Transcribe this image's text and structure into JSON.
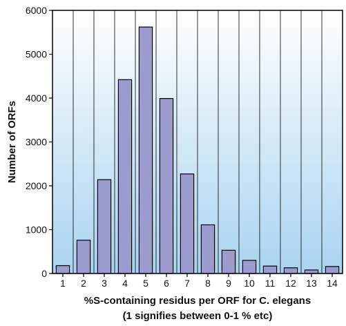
{
  "chart_data": {
    "type": "bar",
    "xlabel_line1": "%S-containing residus per ORF for C. elegans",
    "xlabel_line2": "(1 signifies between 0-1 % etc)",
    "ylabel": "Number of ORFs",
    "categories": [
      "1",
      "2",
      "3",
      "4",
      "5",
      "6",
      "7",
      "8",
      "9",
      "10",
      "11",
      "12",
      "13",
      "14"
    ],
    "values": [
      180,
      760,
      2140,
      4420,
      5620,
      3990,
      2270,
      1110,
      530,
      300,
      170,
      130,
      80,
      160
    ],
    "ylim": [
      0,
      6000
    ],
    "yticks": [
      0,
      1000,
      2000,
      3000,
      4000,
      5000,
      6000
    ],
    "grid": "vertical",
    "bar_color": "#9b9bce",
    "bar_edge_color": "#000000",
    "plot_background_top": "#ffffff",
    "plot_background_bottom": "#a9d3f0"
  }
}
